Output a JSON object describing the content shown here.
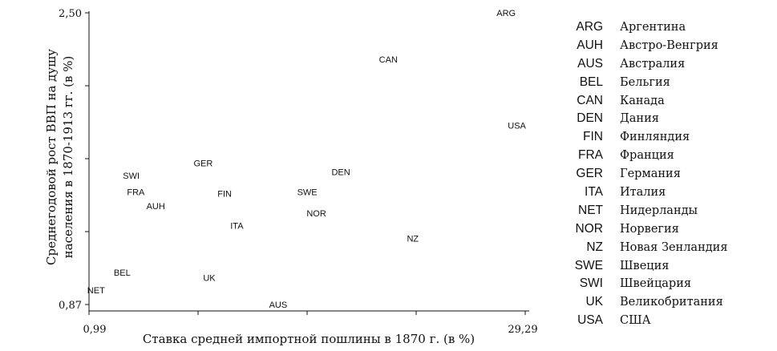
{
  "chart_data": {
    "type": "scatter",
    "xlabel": "Ставка средней импортной пошлины в 1870 г. (в %)",
    "ylabel_lines": [
      "Среднегодовой рост ВВП на душу",
      "населения в 1870-1913 гг. (в %)"
    ],
    "x_tick_labels": [
      "0,99",
      "29,29"
    ],
    "y_tick_labels": [
      "0,87",
      "2,50"
    ],
    "xlim": [
      0.99,
      29.29
    ],
    "ylim": [
      0.87,
      2.5
    ],
    "grid": false,
    "points": [
      {
        "label": "ARG",
        "x": 28.2,
        "y": 2.5
      },
      {
        "label": "CAN",
        "x": 20.5,
        "y": 2.24
      },
      {
        "label": "USA",
        "x": 28.9,
        "y": 1.87
      },
      {
        "label": "GER",
        "x": 8.4,
        "y": 1.66
      },
      {
        "label": "SWI",
        "x": 3.7,
        "y": 1.59
      },
      {
        "label": "DEN",
        "x": 17.4,
        "y": 1.61
      },
      {
        "label": "FRA",
        "x": 4.0,
        "y": 1.5
      },
      {
        "label": "FIN",
        "x": 9.8,
        "y": 1.49
      },
      {
        "label": "SWE",
        "x": 15.2,
        "y": 1.5
      },
      {
        "label": "AUH",
        "x": 5.3,
        "y": 1.42
      },
      {
        "label": "NOR",
        "x": 15.8,
        "y": 1.38
      },
      {
        "label": "ITA",
        "x": 10.6,
        "y": 1.31
      },
      {
        "label": "NZ",
        "x": 22.1,
        "y": 1.24
      },
      {
        "label": "BEL",
        "x": 3.1,
        "y": 1.05
      },
      {
        "label": "UK",
        "x": 8.8,
        "y": 1.02
      },
      {
        "label": "NET",
        "x": 1.4,
        "y": 0.95
      },
      {
        "label": "AUS",
        "x": 13.3,
        "y": 0.87
      }
    ]
  },
  "legend": [
    {
      "code": "ARG",
      "name": "Аргентина"
    },
    {
      "code": "AUH",
      "name": "Австро-Венгрия"
    },
    {
      "code": "AUS",
      "name": "Австралия"
    },
    {
      "code": "BEL",
      "name": "Бельгия"
    },
    {
      "code": "CAN",
      "name": "Канада"
    },
    {
      "code": "DEN",
      "name": "Дания"
    },
    {
      "code": "FIN",
      "name": "Финляндия"
    },
    {
      "code": "FRA",
      "name": "Франция"
    },
    {
      "code": "GER",
      "name": "Германия"
    },
    {
      "code": "ITA",
      "name": "Италия"
    },
    {
      "code": "NET",
      "name": "Нидерланды"
    },
    {
      "code": "NOR",
      "name": "Норвегия"
    },
    {
      "code": "NZ",
      "name": "Новая Зенландия"
    },
    {
      "code": "SWE",
      "name": "Швеция"
    },
    {
      "code": "SWI",
      "name": "Швейцария"
    },
    {
      "code": "UK",
      "name": "Великобритания"
    },
    {
      "code": "USA",
      "name": "США"
    }
  ]
}
